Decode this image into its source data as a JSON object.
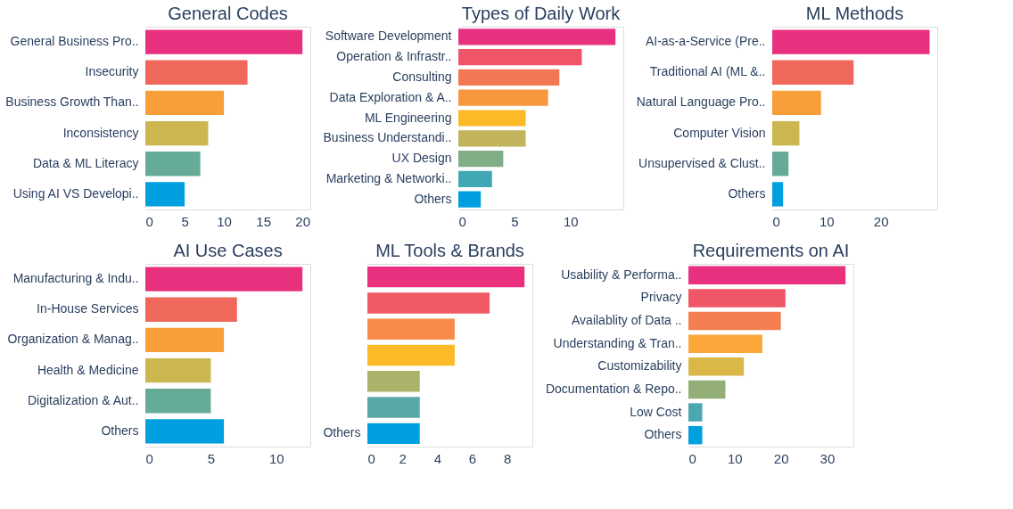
{
  "chart_data": [
    {
      "type": "bar",
      "orientation": "horizontal",
      "title": "General Codes",
      "categories": [
        "General Business Pro..",
        "Insecurity",
        "Business Growth Than..",
        "Inconsistency",
        "Data & ML Literacy",
        "Using AI VS Developi.."
      ],
      "values": [
        20,
        13,
        10,
        8,
        7,
        5
      ],
      "colors": [
        "#e8307f",
        "#f0675c",
        "#f89f3a",
        "#cbb64f",
        "#66ab97",
        "#00a0e0"
      ],
      "xlim": [
        0,
        21
      ],
      "xticks": [
        0,
        5,
        10,
        15,
        20
      ],
      "grid": "x"
    },
    {
      "type": "bar",
      "orientation": "horizontal",
      "title": "Types of Daily Work",
      "categories": [
        "Software Development",
        "Operation & Infrastr..",
        "Consulting",
        "Data Exploration & A..",
        "ML Engineering",
        "Business Understandi..",
        "UX Design",
        "Marketing & Networki..",
        "Others"
      ],
      "values": [
        14,
        11,
        9,
        8,
        6,
        6,
        4,
        3,
        2
      ],
      "colors": [
        "#e8307f",
        "#ef5468",
        "#f27753",
        "#f7983e",
        "#fcb928",
        "#c1b45a",
        "#80ae87",
        "#40a8b4",
        "#00a0e0"
      ],
      "xlim": [
        0,
        14.7
      ],
      "xticks": [
        0,
        5,
        10
      ],
      "grid": "x"
    },
    {
      "type": "bar",
      "orientation": "horizontal",
      "title": "ML Methods",
      "categories": [
        "AI-as-a-Service (Pre..",
        "Traditional AI (ML &..",
        "Natural Language Pro..",
        "Computer Vision",
        "Unsupervised & Clust..",
        "Others"
      ],
      "values": [
        29,
        15,
        9,
        5,
        3,
        2
      ],
      "colors": [
        "#e8307f",
        "#f0675c",
        "#f89f3a",
        "#cbb64f",
        "#66ab97",
        "#00a0e0"
      ],
      "xlim": [
        0,
        30.4
      ],
      "xticks": [
        0,
        10,
        20
      ],
      "grid": "x"
    },
    {
      "type": "bar",
      "orientation": "horizontal",
      "title": "AI Use Cases",
      "categories": [
        "Manufacturing & Indu..",
        "In-House Services",
        "Organization & Manag..",
        "Health & Medicine",
        "Digitalization & Aut..",
        "Others"
      ],
      "values": [
        12,
        7,
        6,
        5,
        5,
        6
      ],
      "colors": [
        "#e8307f",
        "#f0675c",
        "#f89f3a",
        "#cbb64f",
        "#66ab97",
        "#00a0e0"
      ],
      "xlim": [
        0,
        12.6
      ],
      "xticks": [
        0,
        5,
        10
      ],
      "grid": "x"
    },
    {
      "type": "bar",
      "orientation": "horizontal",
      "title": "ML Tools & Brands",
      "categories": [
        null,
        null,
        null,
        null,
        null,
        null,
        "Others"
      ],
      "values": [
        9,
        7,
        5,
        5,
        3,
        3,
        3
      ],
      "colors": [
        "#e8307f",
        "#ef5a64",
        "#f68c48",
        "#fcb928",
        "#abb26a",
        "#59a8a8",
        "#00a0e0"
      ],
      "xlim": [
        0,
        9.45
      ],
      "xticks": [
        0,
        2,
        4,
        6,
        8
      ],
      "grid": "x"
    },
    {
      "type": "bar",
      "orientation": "horizontal",
      "title": "Requirements on AI",
      "categories": [
        "Usability & Performa..",
        "Privacy",
        "Availablity of Data ..",
        "Understanding & Tran..",
        "Customizability",
        "Documentation & Repo..",
        "Low Cost",
        "Others"
      ],
      "values": [
        34,
        21,
        20,
        16,
        12,
        8,
        3,
        3
      ],
      "colors": [
        "#e8307f",
        "#ef5666",
        "#f37e50",
        "#fba73a",
        "#dab848",
        "#94ae78",
        "#4ca8b0",
        "#00a0e0"
      ],
      "xlim": [
        0,
        35.7
      ],
      "xticks": [
        0,
        10,
        20,
        30
      ],
      "grid": "x"
    }
  ]
}
